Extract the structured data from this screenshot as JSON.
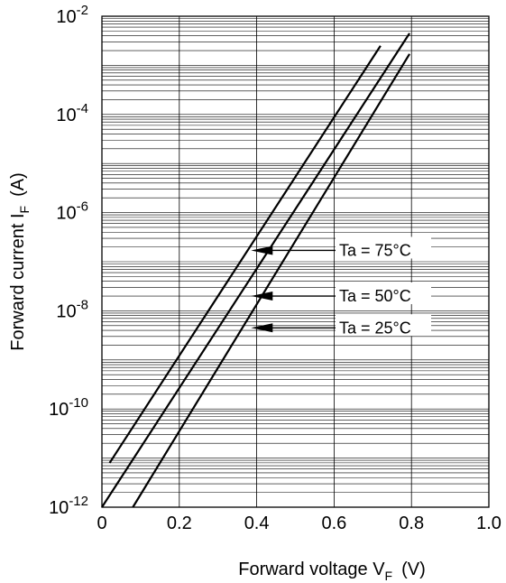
{
  "chart_data": {
    "type": "line",
    "xlabel": "Forward voltage  V",
    "xlabel_sub": "F",
    "xlabel_unit": "(V)",
    "ylabel": "Forward current  I",
    "ylabel_sub": "F",
    "ylabel_unit": "(A)",
    "xlim": [
      0,
      1.0
    ],
    "ylim": [
      1e-12,
      0.01
    ],
    "yscale": "log",
    "grid": true,
    "x_ticks": [
      0,
      0.2,
      0.4,
      0.6,
      0.8,
      1.0
    ],
    "x_tick_labels": [
      "0",
      "0.2",
      "0.4",
      "0.6",
      "0.8",
      "1.0"
    ],
    "y_tick_exponents": [
      -12,
      -10,
      -8,
      -6,
      -4,
      -2
    ],
    "y_tick_base": "10",
    "series": [
      {
        "name": "Ta = 75°C",
        "x": [
          0.02,
          0.72
        ],
        "y": [
          8e-12,
          0.0025
        ]
      },
      {
        "name": "Ta = 50°C",
        "x": [
          0.0,
          0.795
        ],
        "y": [
          1e-12,
          0.0045
        ]
      },
      {
        "name": "Ta = 25°C",
        "x": [
          0.08,
          0.795
        ],
        "y": [
          1e-12,
          0.0017
        ]
      }
    ],
    "annotations": [
      {
        "text": "Ta = 75°C",
        "series": 0,
        "arrow_x": 0.39,
        "arrow_y": 1.7e-07
      },
      {
        "text": "Ta = 50°C",
        "series": 1,
        "arrow_x": 0.39,
        "arrow_y": 2e-08
      },
      {
        "text": "Ta = 25°C",
        "series": 2,
        "arrow_x": 0.39,
        "arrow_y": 4.5e-09
      }
    ]
  }
}
